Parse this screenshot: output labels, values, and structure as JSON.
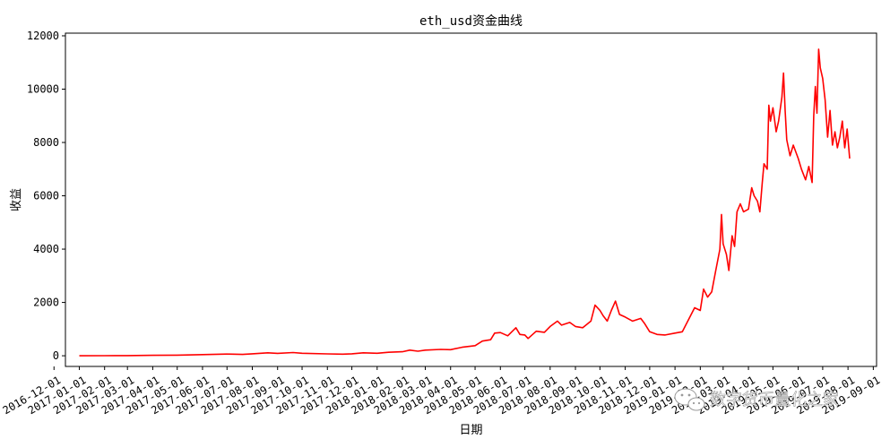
{
  "chart_data": {
    "type": "line",
    "title": "eth_usd资金曲线",
    "xlabel": "日期",
    "ylabel": "收益",
    "ylim": [
      -400,
      12100
    ],
    "xlim": [
      "2016-12-15",
      "2019-09-05"
    ],
    "y_ticks": [
      0,
      2000,
      4000,
      6000,
      8000,
      10000,
      12000
    ],
    "x_ticks": [
      "2016-12-01",
      "2017-01-01",
      "2017-02-01",
      "2017-03-01",
      "2017-04-01",
      "2017-05-01",
      "2017-06-01",
      "2017-07-01",
      "2017-08-01",
      "2017-09-01",
      "2017-10-01",
      "2017-11-01",
      "2017-12-01",
      "2018-01-01",
      "2018-02-01",
      "2018-03-01",
      "2018-04-01",
      "2018-05-01",
      "2018-06-01",
      "2018-07-01",
      "2018-08-01",
      "2018-09-01",
      "2018-10-01",
      "2018-11-01",
      "2018-12-01",
      "2019-01-01",
      "2019-02-01",
      "2019-03-01",
      "2019-04-01",
      "2019-05-01",
      "2019-06-01",
      "2019-07-01",
      "2019-08-01",
      "2019-09-01"
    ],
    "grid": false,
    "series": [
      {
        "color": "#ff0000",
        "points": [
          [
            "2017-01-01",
            0
          ],
          [
            "2017-02-01",
            3
          ],
          [
            "2017-03-01",
            8
          ],
          [
            "2017-04-01",
            15
          ],
          [
            "2017-05-01",
            25
          ],
          [
            "2017-06-01",
            45
          ],
          [
            "2017-07-01",
            65
          ],
          [
            "2017-07-20",
            50
          ],
          [
            "2017-08-01",
            75
          ],
          [
            "2017-08-20",
            110
          ],
          [
            "2017-09-01",
            90
          ],
          [
            "2017-09-20",
            120
          ],
          [
            "2017-10-01",
            95
          ],
          [
            "2017-11-01",
            70
          ],
          [
            "2017-11-20",
            60
          ],
          [
            "2017-12-01",
            75
          ],
          [
            "2017-12-15",
            110
          ],
          [
            "2018-01-01",
            95
          ],
          [
            "2018-01-15",
            130
          ],
          [
            "2018-02-01",
            150
          ],
          [
            "2018-02-10",
            210
          ],
          [
            "2018-02-20",
            170
          ],
          [
            "2018-03-01",
            210
          ],
          [
            "2018-03-20",
            240
          ],
          [
            "2018-04-01",
            230
          ],
          [
            "2018-04-15",
            320
          ],
          [
            "2018-05-01",
            380
          ],
          [
            "2018-05-10",
            550
          ],
          [
            "2018-05-20",
            600
          ],
          [
            "2018-05-25",
            850
          ],
          [
            "2018-06-01",
            870
          ],
          [
            "2018-06-10",
            750
          ],
          [
            "2018-06-20",
            1050
          ],
          [
            "2018-06-25",
            800
          ],
          [
            "2018-07-01",
            780
          ],
          [
            "2018-07-05",
            650
          ],
          [
            "2018-07-15",
            920
          ],
          [
            "2018-07-25",
            880
          ],
          [
            "2018-08-01",
            1100
          ],
          [
            "2018-08-10",
            1300
          ],
          [
            "2018-08-15",
            1150
          ],
          [
            "2018-08-25",
            1250
          ],
          [
            "2018-09-01",
            1100
          ],
          [
            "2018-09-10",
            1050
          ],
          [
            "2018-09-20",
            1300
          ],
          [
            "2018-09-25",
            1900
          ],
          [
            "2018-10-01",
            1700
          ],
          [
            "2018-10-05",
            1500
          ],
          [
            "2018-10-10",
            1300
          ],
          [
            "2018-10-15",
            1700
          ],
          [
            "2018-10-20",
            2050
          ],
          [
            "2018-10-25",
            1550
          ],
          [
            "2018-11-01",
            1450
          ],
          [
            "2018-11-10",
            1300
          ],
          [
            "2018-11-20",
            1400
          ],
          [
            "2018-11-25",
            1200
          ],
          [
            "2018-12-01",
            900
          ],
          [
            "2018-12-10",
            800
          ],
          [
            "2018-12-20",
            780
          ],
          [
            "2019-01-01",
            850
          ],
          [
            "2019-01-10",
            900
          ],
          [
            "2019-01-20",
            1500
          ],
          [
            "2019-01-25",
            1800
          ],
          [
            "2019-02-01",
            1700
          ],
          [
            "2019-02-05",
            2500
          ],
          [
            "2019-02-10",
            2200
          ],
          [
            "2019-02-15",
            2400
          ],
          [
            "2019-02-20",
            3200
          ],
          [
            "2019-02-25",
            4000
          ],
          [
            "2019-02-27",
            5300
          ],
          [
            "2019-03-01",
            4200
          ],
          [
            "2019-03-05",
            3800
          ],
          [
            "2019-03-08",
            3200
          ],
          [
            "2019-03-12",
            4500
          ],
          [
            "2019-03-15",
            4100
          ],
          [
            "2019-03-18",
            5400
          ],
          [
            "2019-03-22",
            5700
          ],
          [
            "2019-03-26",
            5400
          ],
          [
            "2019-04-01",
            5500
          ],
          [
            "2019-04-05",
            6300
          ],
          [
            "2019-04-08",
            6000
          ],
          [
            "2019-04-12",
            5800
          ],
          [
            "2019-04-15",
            5400
          ],
          [
            "2019-04-18",
            6500
          ],
          [
            "2019-04-20",
            7200
          ],
          [
            "2019-04-24",
            7000
          ],
          [
            "2019-04-26",
            9400
          ],
          [
            "2019-04-28",
            8800
          ],
          [
            "2019-05-01",
            9300
          ],
          [
            "2019-05-05",
            8400
          ],
          [
            "2019-05-08",
            8800
          ],
          [
            "2019-05-12",
            9700
          ],
          [
            "2019-05-14",
            10600
          ],
          [
            "2019-05-16",
            9200
          ],
          [
            "2019-05-18",
            8100
          ],
          [
            "2019-05-22",
            7500
          ],
          [
            "2019-05-26",
            7900
          ],
          [
            "2019-06-01",
            7400
          ],
          [
            "2019-06-05",
            7000
          ],
          [
            "2019-06-10",
            6600
          ],
          [
            "2019-06-14",
            7100
          ],
          [
            "2019-06-18",
            6500
          ],
          [
            "2019-06-20",
            9000
          ],
          [
            "2019-06-22",
            10100
          ],
          [
            "2019-06-24",
            9100
          ],
          [
            "2019-06-26",
            11500
          ],
          [
            "2019-06-28",
            10800
          ],
          [
            "2019-07-01",
            10400
          ],
          [
            "2019-07-04",
            9600
          ],
          [
            "2019-07-07",
            8200
          ],
          [
            "2019-07-10",
            9200
          ],
          [
            "2019-07-13",
            7900
          ],
          [
            "2019-07-16",
            8400
          ],
          [
            "2019-07-19",
            7800
          ],
          [
            "2019-07-22",
            8200
          ],
          [
            "2019-07-25",
            8800
          ],
          [
            "2019-07-28",
            7800
          ],
          [
            "2019-07-31",
            8500
          ],
          [
            "2019-08-03",
            7400
          ]
        ]
      }
    ],
    "watermark": "数字货币量化之家"
  }
}
